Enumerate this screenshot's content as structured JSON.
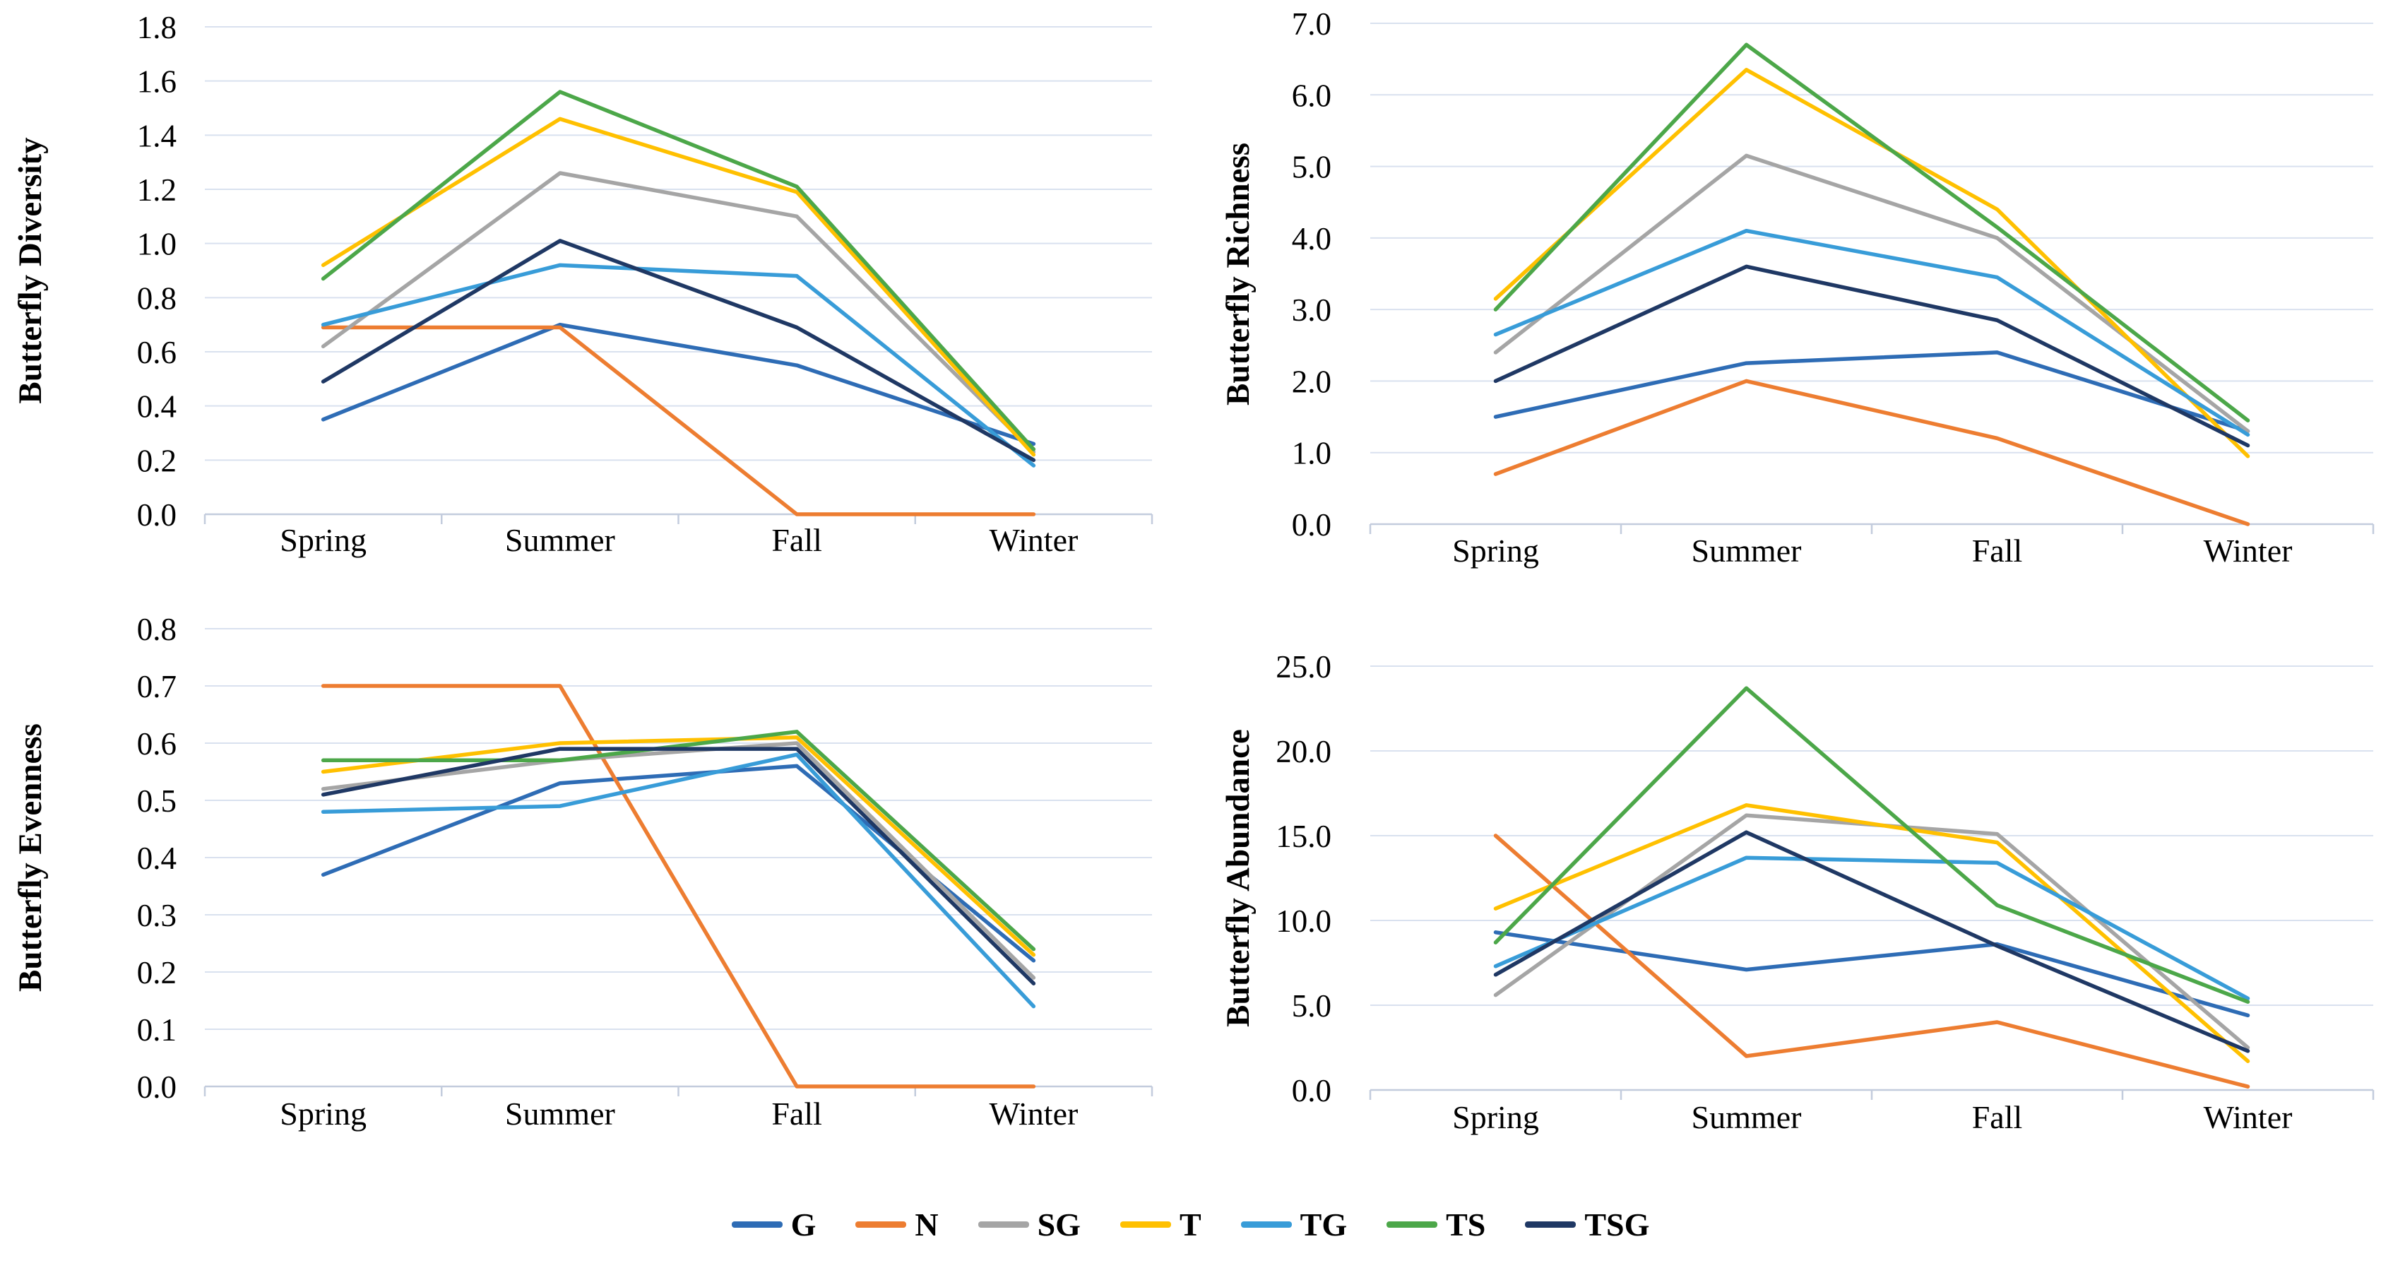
{
  "figure": {
    "background": "#FFFFFF",
    "gridline_color": "#D9E1EF",
    "axis_line_color": "#C3CCDD",
    "text_color": "#000000"
  },
  "legend": {
    "position": "bottom-center",
    "entries": [
      {
        "label": "G",
        "color": "#2E6CB5"
      },
      {
        "label": "N",
        "color": "#ED7D31"
      },
      {
        "label": "SG",
        "color": "#A5A5A5"
      },
      {
        "label": "T",
        "color": "#FFC000"
      },
      {
        "label": "TG",
        "color": "#389CD8"
      },
      {
        "label": "TS",
        "color": "#4CA749"
      },
      {
        "label": "TSG",
        "color": "#1F3864"
      }
    ]
  },
  "chart_data": [
    {
      "type": "line",
      "ylabel": "Butterfly Diversity",
      "categories": [
        "Spring",
        "Summer",
        "Fall",
        "Winter"
      ],
      "ylim": [
        0,
        1.8
      ],
      "ytick_step": 0.2,
      "grid": true,
      "legend_position": "shared-bottom",
      "series": [
        {
          "name": "G",
          "color": "#2E6CB5",
          "values": [
            0.35,
            0.7,
            0.55,
            0.26
          ]
        },
        {
          "name": "N",
          "color": "#ED7D31",
          "values": [
            0.69,
            0.69,
            0.0,
            0.0
          ]
        },
        {
          "name": "SG",
          "color": "#A5A5A5",
          "values": [
            0.62,
            1.26,
            1.1,
            0.23
          ]
        },
        {
          "name": "T",
          "color": "#FFC000",
          "values": [
            0.92,
            1.46,
            1.19,
            0.22
          ]
        },
        {
          "name": "TG",
          "color": "#389CD8",
          "values": [
            0.7,
            0.92,
            0.88,
            0.18
          ]
        },
        {
          "name": "TS",
          "color": "#4CA749",
          "values": [
            0.87,
            1.56,
            1.21,
            0.24
          ]
        },
        {
          "name": "TSG",
          "color": "#1F3864",
          "values": [
            0.49,
            1.01,
            0.69,
            0.2
          ]
        }
      ]
    },
    {
      "type": "line",
      "ylabel": "Butterfly Richness",
      "categories": [
        "Spring",
        "Summer",
        "Fall",
        "Winter"
      ],
      "ylim": [
        0,
        7.0
      ],
      "ytick_step": 1.0,
      "grid": true,
      "legend_position": "shared-bottom",
      "series": [
        {
          "name": "G",
          "color": "#2E6CB5",
          "values": [
            1.5,
            2.25,
            2.4,
            1.3
          ]
        },
        {
          "name": "N",
          "color": "#ED7D31",
          "values": [
            0.7,
            2.0,
            1.2,
            0.0
          ]
        },
        {
          "name": "SG",
          "color": "#A5A5A5",
          "values": [
            2.4,
            5.15,
            4.0,
            1.3
          ]
        },
        {
          "name": "T",
          "color": "#FFC000",
          "values": [
            3.15,
            6.35,
            4.4,
            0.95
          ]
        },
        {
          "name": "TG",
          "color": "#389CD8",
          "values": [
            2.65,
            4.1,
            3.45,
            1.25
          ]
        },
        {
          "name": "TS",
          "color": "#4CA749",
          "values": [
            3.0,
            6.7,
            4.15,
            1.45
          ]
        },
        {
          "name": "TSG",
          "color": "#1F3864",
          "values": [
            2.0,
            3.6,
            2.85,
            1.1
          ]
        }
      ]
    },
    {
      "type": "line",
      "ylabel": "Butterfly Evenness",
      "categories": [
        "Spring",
        "Summer",
        "Fall",
        "Winter"
      ],
      "ylim": [
        0,
        0.8
      ],
      "ytick_step": 0.1,
      "grid": true,
      "legend_position": "shared-bottom",
      "series": [
        {
          "name": "G",
          "color": "#2E6CB5",
          "values": [
            0.37,
            0.53,
            0.56,
            0.22
          ]
        },
        {
          "name": "N",
          "color": "#ED7D31",
          "values": [
            0.7,
            0.7,
            0.0,
            0.0
          ]
        },
        {
          "name": "SG",
          "color": "#A5A5A5",
          "values": [
            0.52,
            0.57,
            0.6,
            0.19
          ]
        },
        {
          "name": "T",
          "color": "#FFC000",
          "values": [
            0.55,
            0.6,
            0.61,
            0.23
          ]
        },
        {
          "name": "TG",
          "color": "#389CD8",
          "values": [
            0.48,
            0.49,
            0.58,
            0.14
          ]
        },
        {
          "name": "TS",
          "color": "#4CA749",
          "values": [
            0.57,
            0.57,
            0.62,
            0.24
          ]
        },
        {
          "name": "TSG",
          "color": "#1F3864",
          "values": [
            0.51,
            0.59,
            0.59,
            0.18
          ]
        }
      ]
    },
    {
      "type": "line",
      "ylabel": "Butterfly Abundance",
      "categories": [
        "Spring",
        "Summer",
        "Fall",
        "Winter"
      ],
      "ylim": [
        0,
        25.0
      ],
      "ytick_step": 5.0,
      "grid": true,
      "legend_position": "shared-bottom",
      "series": [
        {
          "name": "G",
          "color": "#2E6CB5",
          "values": [
            9.3,
            7.1,
            8.6,
            4.4
          ]
        },
        {
          "name": "N",
          "color": "#ED7D31",
          "values": [
            15.0,
            2.0,
            4.0,
            0.2
          ]
        },
        {
          "name": "SG",
          "color": "#A5A5A5",
          "values": [
            5.6,
            16.2,
            15.1,
            2.5
          ]
        },
        {
          "name": "T",
          "color": "#FFC000",
          "values": [
            10.7,
            16.8,
            14.6,
            1.7
          ]
        },
        {
          "name": "TG",
          "color": "#389CD8",
          "values": [
            7.3,
            13.7,
            13.4,
            5.4
          ]
        },
        {
          "name": "TS",
          "color": "#4CA749",
          "values": [
            8.7,
            23.7,
            10.9,
            5.2
          ]
        },
        {
          "name": "TSG",
          "color": "#1F3864",
          "values": [
            6.8,
            15.2,
            8.5,
            2.3
          ]
        }
      ]
    }
  ]
}
